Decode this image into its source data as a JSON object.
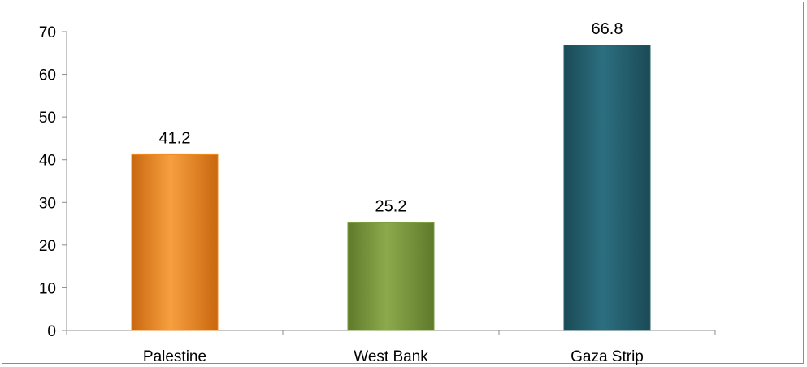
{
  "chart_data": {
    "type": "bar",
    "categories": [
      "Palestine",
      "West Bank",
      "Gaza Strip"
    ],
    "values": [
      41.2,
      25.2,
      66.8
    ],
    "data_labels": [
      "41.2",
      "25.2",
      "66.8"
    ],
    "yticks": [
      "0",
      "10",
      "20",
      "30",
      "40",
      "50",
      "60",
      "70"
    ],
    "ylim": [
      0,
      70
    ],
    "grid": false,
    "legend": "none",
    "colors": [
      "#f28a1e",
      "#7a9a3c",
      "#245f6e"
    ]
  }
}
